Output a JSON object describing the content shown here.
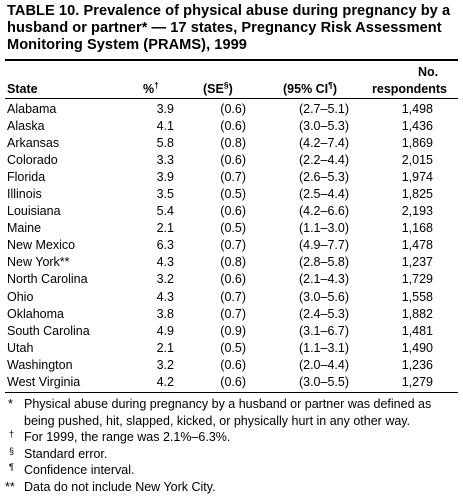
{
  "title": "TABLE 10. Prevalence of physical abuse during pregnancy by a husband or partner* — 17 states, Pregnancy Risk Assessment Monitoring System (PRAMS), 1999",
  "columns": {
    "state": "State",
    "pct": "%",
    "pct_mark": "†",
    "se_open": "(SE",
    "se_mark": "§",
    "se_close": ")",
    "ci_open": "(95% CI",
    "ci_mark": "¶",
    "ci_close": ")",
    "n_line1": "No.",
    "n_line2": "respondents"
  },
  "rows": [
    {
      "state": "Alabama",
      "pct": "3.9",
      "se": "(0.6)",
      "ci": "(2.7–5.1)",
      "n": "1,498"
    },
    {
      "state": "Alaska",
      "pct": "4.1",
      "se": "(0.6)",
      "ci": "(3.0–5.3)",
      "n": "1,436"
    },
    {
      "state": "Arkansas",
      "pct": "5.8",
      "se": "(0.8)",
      "ci": "(4.2–7.4)",
      "n": "1,869"
    },
    {
      "state": "Colorado",
      "pct": "3.3",
      "se": "(0.6)",
      "ci": "(2.2–4.4)",
      "n": "2,015"
    },
    {
      "state": "Florida",
      "pct": "3.9",
      "se": "(0.7)",
      "ci": "(2.6–5.3)",
      "n": "1,974"
    },
    {
      "state": "Illinois",
      "pct": "3.5",
      "se": "(0.5)",
      "ci": "(2.5–4.4)",
      "n": "1,825"
    },
    {
      "state": "Louisiana",
      "pct": "5.4",
      "se": "(0.6)",
      "ci": "(4.2–6.6)",
      "n": "2,193"
    },
    {
      "state": "Maine",
      "pct": "2.1",
      "se": "(0.5)",
      "ci": "(1.1–3.0)",
      "n": "1,168"
    },
    {
      "state": "New Mexico",
      "pct": "6.3",
      "se": "(0.7)",
      "ci": "(4.9–7.7)",
      "n": "1,478"
    },
    {
      "state": "New York**",
      "pct": "4.3",
      "se": "(0.8)",
      "ci": "(2.8–5.8)",
      "n": "1,237"
    },
    {
      "state": "North Carolina",
      "pct": "3.2",
      "se": "(0.6)",
      "ci": "(2.1–4.3)",
      "n": "1,729"
    },
    {
      "state": "Ohio",
      "pct": "4.3",
      "se": "(0.7)",
      "ci": "(3.0–5.6)",
      "n": "1,558"
    },
    {
      "state": "Oklahoma",
      "pct": "3.8",
      "se": "(0.7)",
      "ci": "(2.4–5.3)",
      "n": "1,882"
    },
    {
      "state": "South Carolina",
      "pct": "4.9",
      "se": "(0.9)",
      "ci": "(3.1–6.7)",
      "n": "1,481"
    },
    {
      "state": "Utah",
      "pct": "2.1",
      "se": "(0.5)",
      "ci": "(1.1–3.1)",
      "n": "1,490"
    },
    {
      "state": "Washington",
      "pct": "3.2",
      "se": "(0.6)",
      "ci": "(2.0–4.4)",
      "n": "1,236"
    },
    {
      "state": "West Virginia",
      "pct": "4.2",
      "se": "(0.6)",
      "ci": "(3.0–5.5)",
      "n": "1,279"
    }
  ],
  "footnotes": [
    {
      "mark": "*",
      "text": "Physical abuse during pregnancy by a husband or partner was  defined as being pushed, hit, slapped, kicked, or physically hurt in any other way."
    },
    {
      "mark": "†",
      "text": "For 1999, the range was 2.1%–6.3%."
    },
    {
      "mark": "§",
      "text": "Standard error."
    },
    {
      "mark": "¶",
      "text": "Confidence interval."
    },
    {
      "mark": "**",
      "text": "Data do not include New York City."
    }
  ]
}
